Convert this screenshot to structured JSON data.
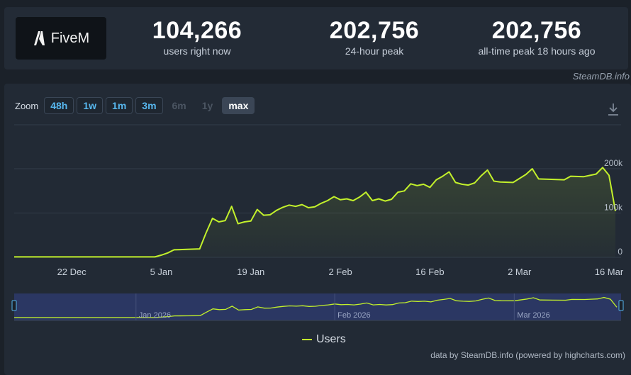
{
  "header": {
    "app_name": "FiveM",
    "stats": [
      {
        "value": "104,266",
        "label": "users right now"
      },
      {
        "value": "202,756",
        "label": "24-hour peak"
      },
      {
        "value": "202,756",
        "label": "all-time peak 18 hours ago"
      }
    ],
    "credit": "SteamDB.info"
  },
  "zoom": {
    "label": "Zoom",
    "buttons": [
      {
        "label": "48h",
        "state": "enabled"
      },
      {
        "label": "1w",
        "state": "enabled"
      },
      {
        "label": "1m",
        "state": "enabled"
      },
      {
        "label": "3m",
        "state": "enabled"
      },
      {
        "label": "6m",
        "state": "disabled"
      },
      {
        "label": "1y",
        "state": "disabled"
      },
      {
        "label": "max",
        "state": "active"
      }
    ]
  },
  "footer_credit": "data by SteamDB.info (powered by highcharts.com)",
  "colors": {
    "series": "#c3f12b",
    "navigator_mask": "#2c3868"
  },
  "chart_data": {
    "type": "line",
    "series": [
      {
        "name": "Users",
        "x": [
          "2025-12-13",
          "2025-12-20",
          "2025-12-27",
          "2026-01-02",
          "2026-01-04",
          "2026-01-05",
          "2026-01-06",
          "2026-01-07",
          "2026-01-09",
          "2026-01-11",
          "2026-01-12",
          "2026-01-13",
          "2026-01-14",
          "2026-01-15",
          "2026-01-16",
          "2026-01-17",
          "2026-01-18",
          "2026-01-19",
          "2026-01-20",
          "2026-01-21",
          "2026-01-22",
          "2026-01-23",
          "2026-01-24",
          "2026-01-25",
          "2026-01-26",
          "2026-01-27",
          "2026-01-28",
          "2026-01-29",
          "2026-01-30",
          "2026-01-31",
          "2026-02-01",
          "2026-02-02",
          "2026-02-03",
          "2026-02-04",
          "2026-02-05",
          "2026-02-06",
          "2026-02-07",
          "2026-02-08",
          "2026-02-09",
          "2026-02-10",
          "2026-02-11",
          "2026-02-12",
          "2026-02-13",
          "2026-02-14",
          "2026-02-15",
          "2026-02-16",
          "2026-02-17",
          "2026-02-18",
          "2026-02-19",
          "2026-02-20",
          "2026-02-21",
          "2026-02-22",
          "2026-02-23",
          "2026-02-24",
          "2026-02-25",
          "2026-02-26",
          "2026-02-27",
          "2026-03-01",
          "2026-03-03",
          "2026-03-04",
          "2026-03-05",
          "2026-03-07",
          "2026-03-09",
          "2026-03-10",
          "2026-03-12",
          "2026-03-14",
          "2026-03-15",
          "2026-03-16",
          "2026-03-17"
        ],
        "values": [
          1000,
          1000,
          1000,
          1000,
          1000,
          5000,
          10000,
          17000,
          18000,
          19000,
          55000,
          88000,
          80000,
          83000,
          115000,
          76000,
          80000,
          82000,
          108000,
          95000,
          96000,
          106000,
          113000,
          118000,
          115000,
          119000,
          112000,
          114000,
          122000,
          128000,
          137000,
          130000,
          132000,
          128000,
          136000,
          147000,
          128000,
          132000,
          127000,
          131000,
          147000,
          150000,
          166000,
          162000,
          165000,
          158000,
          175000,
          183000,
          193000,
          169000,
          165000,
          163000,
          168000,
          184000,
          197000,
          172000,
          170000,
          169000,
          187000,
          200000,
          177000,
          176000,
          175000,
          183000,
          182000,
          188000,
          202756,
          185000,
          104266
        ]
      }
    ],
    "ylim": [
      0,
      200000
    ],
    "y_ticks": [
      0,
      100000,
      200000
    ],
    "y_tick_labels": [
      "0",
      "100k",
      "200k"
    ],
    "x_ticks": [
      "2025-12-22",
      "2026-01-05",
      "2026-01-19",
      "2026-02-02",
      "2026-02-16",
      "2026-03-02",
      "2026-03-16"
    ],
    "x_tick_labels": [
      "22 Dec",
      "5 Jan",
      "19 Jan",
      "2 Feb",
      "16 Feb",
      "2 Mar",
      "16 Mar"
    ],
    "navigator": {
      "labels": [
        "Jan 2026",
        "Feb 2026",
        "Mar 2026"
      ],
      "label_dates": [
        "2026-01-01",
        "2026-02-01",
        "2026-03-01"
      ]
    },
    "legend": [
      "Users"
    ],
    "grid": true
  }
}
